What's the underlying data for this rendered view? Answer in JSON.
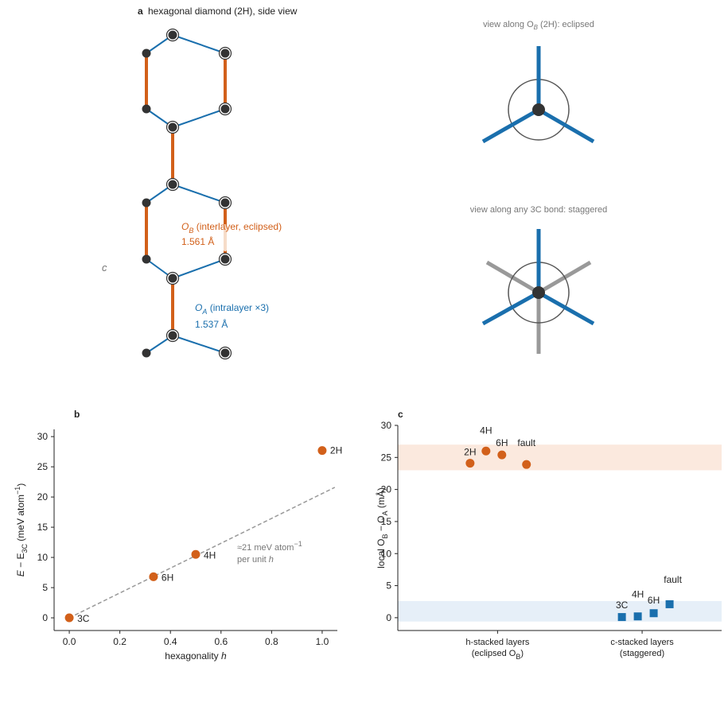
{
  "diagram": {
    "panel_a": "a",
    "title": "hexagonal diamond (2H), side view",
    "axis_c": "c",
    "ob_label": [
      "O",
      "B",
      " (interlayer, eclipsed)"
    ],
    "ob_length": "1.561 Å",
    "oa_label": [
      "O",
      "A",
      " (intralayer ×3)"
    ],
    "oa_length": "1.537 Å",
    "eclipsed_title": [
      "view along O",
      "B",
      " (2H): eclipsed"
    ],
    "staggered_title": "view along any 3C bond: staggered"
  },
  "chart_data": [
    {
      "type": "scatter",
      "panel": "b",
      "xlabel": [
        "hexagonality ",
        "h"
      ],
      "ylabel": [
        "E",
        " − E",
        "3C",
        " (meV atom",
        "−1",
        ")"
      ],
      "x": [
        0,
        0.333,
        0.5,
        1.0
      ],
      "values": [
        0,
        6.8,
        10.5,
        27.7
      ],
      "labels": [
        "3C",
        "6H",
        "4H",
        "2H"
      ],
      "color": "#d2601a",
      "fit_line": {
        "x": [
          0,
          1.05
        ],
        "y": [
          0,
          21.6
        ],
        "color": "#999999"
      },
      "annotation": [
        "≈21 meV atom",
        "−1",
        "per unit ",
        "h"
      ],
      "xlim": [
        -0.06,
        1.06
      ],
      "ylim": [
        -2.1,
        31.2
      ],
      "xticks": [
        {
          "value": 0,
          "label": "0.0"
        },
        0.2,
        0.4,
        0.6,
        0.8,
        {
          "value": 1,
          "label": "1.0"
        }
      ],
      "yticks": [
        0,
        5,
        10,
        15,
        20,
        25,
        30
      ]
    },
    {
      "type": "scatter",
      "panel": "c",
      "ylabel": [
        "local O",
        "B",
        " − O",
        "A",
        " (mÅ)"
      ],
      "categories": [
        "h-stacked layers",
        "c-stacked layers"
      ],
      "category_notes": [
        [
          "(eclipsed O",
          "B",
          ")"
        ],
        [
          "(staggered)"
        ]
      ],
      "bands": [
        {
          "ylim": [
            23,
            27
          ],
          "color": "#fbe9de"
        },
        {
          "ylim": [
            -0.6,
            2.6
          ],
          "color": "#e6eff8"
        }
      ],
      "series": [
        {
          "marker": "circle",
          "color": "#d2601a",
          "x": [
            -0.19,
            -0.08,
            0.03,
            0.2
          ],
          "values": [
            24.1,
            26.0,
            25.4,
            23.9
          ],
          "labels": [
            "2H",
            "4H",
            "6H",
            "fault"
          ]
        },
        {
          "marker": "square",
          "color": "#1a6fad",
          "x": [
            0.86,
            0.97,
            1.08,
            1.19
          ],
          "values": [
            0.1,
            0.2,
            0.7,
            2.1
          ],
          "labels": [
            "3C",
            "4H",
            "6H",
            "fault"
          ]
        }
      ],
      "xlim": [
        -0.69,
        1.55
      ],
      "ylim": [
        -2,
        30
      ],
      "yticks": [
        0,
        5,
        10,
        15,
        20,
        25,
        30
      ]
    }
  ]
}
